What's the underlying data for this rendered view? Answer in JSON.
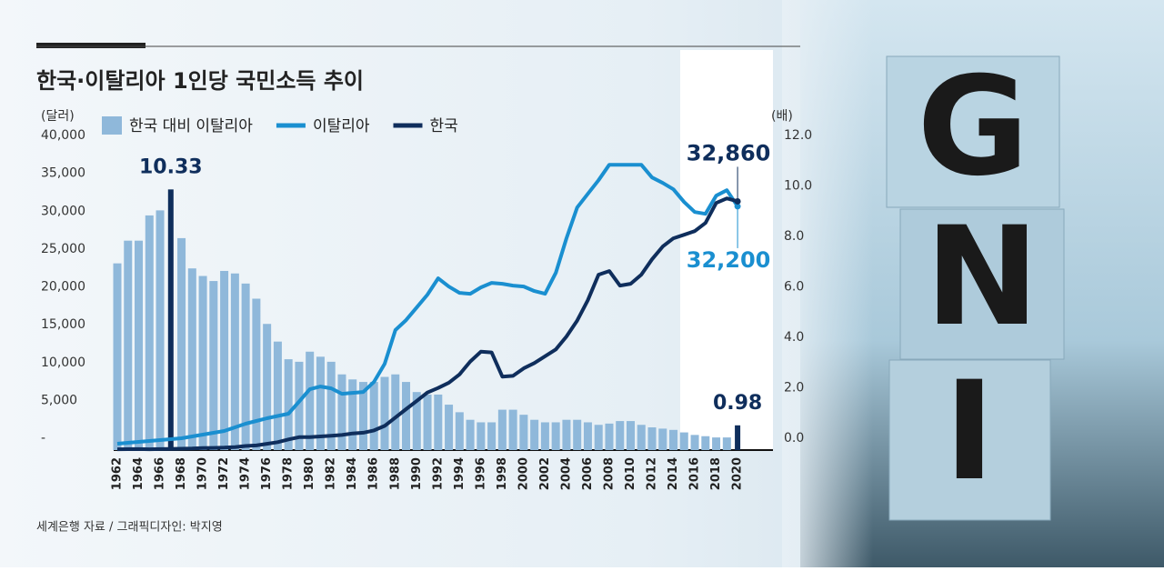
{
  "chart_data": {
    "type": "bar_line",
    "title": "한국·이탈리아 1인당 국민소득 추이",
    "y_axis_label": "(달러)",
    "y2_axis_label": "(배)",
    "source": "세계은행 자료 / 그래픽디자인: 박지영",
    "categories": [
      "1962",
      null,
      "1964",
      null,
      "1966",
      null,
      "1968",
      null,
      "1970",
      null,
      "1972",
      null,
      "1974",
      null,
      "1976",
      null,
      "1978",
      null,
      "1980",
      null,
      "1982",
      null,
      "1984",
      null,
      "1986",
      null,
      "1988",
      null,
      "1990",
      null,
      "1992",
      null,
      "1994",
      null,
      "1996",
      null,
      "1998",
      null,
      "2000",
      null,
      "2002",
      null,
      "2004",
      null,
      "2006",
      null,
      "2008",
      null,
      "2010",
      null,
      "2012",
      null,
      "2014",
      null,
      "2016",
      null,
      "2018",
      null,
      "2020"
    ],
    "ylim": [
      0,
      40000
    ],
    "yticks": [
      {
        "value": 0,
        "label": "-"
      },
      {
        "value": 5000,
        "label": "5,000"
      },
      {
        "value": 10000,
        "label": "10,000"
      },
      {
        "value": 15000,
        "label": "15,000"
      },
      {
        "value": 20000,
        "label": "20,000"
      },
      {
        "value": 25000,
        "label": "25,000"
      },
      {
        "value": 30000,
        "label": "30,000"
      },
      {
        "value": 35000,
        "label": "35,000"
      },
      {
        "value": 40000,
        "label": "40,000"
      }
    ],
    "y2lim": [
      0,
      12
    ],
    "y2ticks": [
      {
        "value": 0,
        "label": "0.0"
      },
      {
        "value": 2,
        "label": "2.0"
      },
      {
        "value": 4,
        "label": "4.0"
      },
      {
        "value": 6,
        "label": "6.0"
      },
      {
        "value": 8,
        "label": "8.0"
      },
      {
        "value": 10,
        "label": "10.0"
      },
      {
        "value": 12,
        "label": "12.0"
      }
    ],
    "series": [
      {
        "name": "한국 대비 이탈리아",
        "kind": "bar",
        "axis": "y2",
        "color": "#8fb8da",
        "highlight_color": "#0f2e5c",
        "values": [
          7.4,
          8.3,
          8.3,
          9.3,
          9.5,
          10.33,
          8.4,
          7.2,
          6.9,
          6.7,
          7.1,
          7.0,
          6.6,
          6.0,
          5.0,
          4.3,
          3.6,
          3.5,
          3.9,
          3.7,
          3.5,
          3.0,
          2.8,
          2.7,
          2.7,
          2.9,
          3.0,
          2.7,
          2.3,
          2.2,
          2.2,
          1.8,
          1.5,
          1.2,
          1.1,
          1.1,
          1.6,
          1.6,
          1.4,
          1.2,
          1.1,
          1.1,
          1.2,
          1.2,
          1.1,
          1.0,
          1.05,
          1.15,
          1.15,
          1.0,
          0.9,
          0.85,
          0.8,
          0.7,
          0.6,
          0.55,
          0.5,
          0.5,
          0.98
        ],
        "value_labels": [
          null,
          null,
          null,
          null,
          null,
          "10.33",
          null,
          null,
          null,
          null,
          null,
          null,
          null,
          null,
          null,
          null,
          null,
          null,
          null,
          null,
          null,
          null,
          null,
          null,
          null,
          null,
          null,
          null,
          null,
          null,
          null,
          null,
          null,
          null,
          null,
          null,
          null,
          null,
          null,
          null,
          null,
          null,
          null,
          null,
          null,
          null,
          null,
          null,
          null,
          null,
          null,
          null,
          null,
          null,
          null,
          null,
          null,
          null,
          "0.98"
        ]
      },
      {
        "name": "이탈리아",
        "kind": "line",
        "color": "#1a8fd0",
        "values": [
          840,
          960,
          1080,
          1200,
          1320,
          1440,
          1560,
          1800,
          2040,
          2280,
          2520,
          3000,
          3480,
          3840,
          4200,
          4500,
          4800,
          6400,
          8040,
          8400,
          8160,
          7440,
          7560,
          7680,
          9000,
          11400,
          15850,
          17170,
          18850,
          20530,
          22690,
          21600,
          20770,
          20650,
          21490,
          22090,
          21970,
          21730,
          21610,
          21010,
          20650,
          23410,
          27970,
          32050,
          33850,
          35650,
          37690,
          37690,
          37690,
          37690,
          36010,
          35290,
          34450,
          32770,
          31450,
          31210,
          33610,
          34330,
          32200
        ],
        "value_labels": [
          null,
          null,
          null,
          null,
          null,
          null,
          null,
          null,
          null,
          null,
          null,
          null,
          null,
          null,
          null,
          null,
          null,
          null,
          null,
          null,
          null,
          null,
          null,
          null,
          null,
          null,
          null,
          null,
          null,
          null,
          null,
          null,
          null,
          null,
          null,
          null,
          null,
          null,
          null,
          null,
          null,
          null,
          null,
          null,
          null,
          null,
          null,
          null,
          null,
          null,
          null,
          null,
          null,
          null,
          null,
          null,
          null,
          null,
          "32,200"
        ]
      },
      {
        "name": "한국",
        "kind": "line",
        "color": "#0f2e5c",
        "values": [
          110,
          120,
          130,
          110,
          130,
          150,
          180,
          210,
          260,
          290,
          320,
          400,
          540,
          610,
          830,
          1050,
          1400,
          1700,
          1700,
          1800,
          1900,
          2000,
          2200,
          2300,
          2600,
          3200,
          4300,
          5400,
          6500,
          7600,
          8200,
          8900,
          10000,
          11700,
          13000,
          12900,
          9700,
          9800,
          10800,
          11500,
          12400,
          13300,
          15000,
          17100,
          19800,
          23170,
          23650,
          21730,
          21970,
          23170,
          25200,
          26900,
          27970,
          28450,
          28930,
          30010,
          32650,
          33250,
          32860
        ],
        "value_labels": [
          null,
          null,
          null,
          null,
          null,
          null,
          null,
          null,
          null,
          null,
          null,
          null,
          null,
          null,
          null,
          null,
          null,
          null,
          null,
          null,
          null,
          null,
          null,
          null,
          null,
          null,
          null,
          null,
          null,
          null,
          null,
          null,
          null,
          null,
          null,
          null,
          null,
          null,
          null,
          null,
          null,
          null,
          null,
          null,
          null,
          null,
          null,
          null,
          null,
          null,
          null,
          null,
          null,
          null,
          null,
          null,
          null,
          null,
          "32,860"
        ]
      }
    ]
  },
  "photo": {
    "letters": [
      "G",
      "N",
      "I"
    ]
  }
}
